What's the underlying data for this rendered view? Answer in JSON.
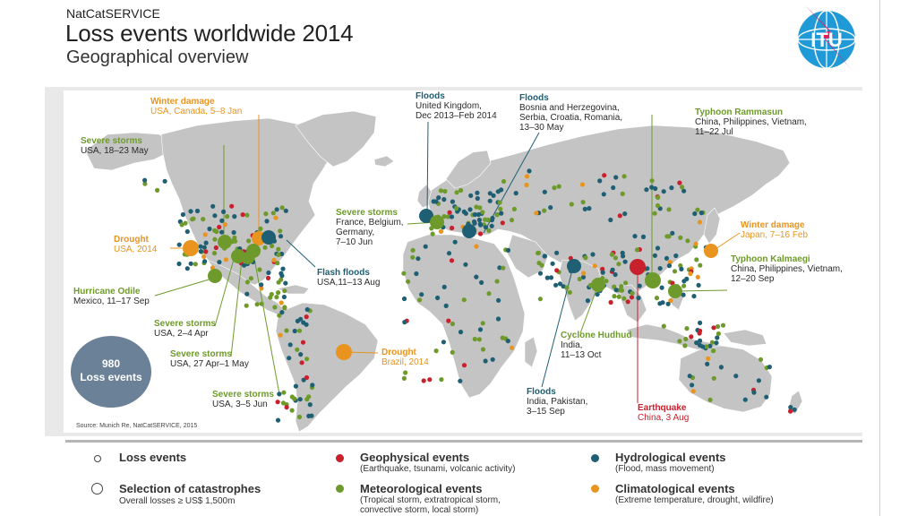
{
  "header": {
    "brand": "NatCatSERVICE",
    "title": "Loss events worldwide 2014",
    "subtitle": "Geographical overview",
    "logo_text": "ITU"
  },
  "summary": {
    "count": "980",
    "label": "Loss events"
  },
  "source": "Source: Munich Re, NatCatSERVICE, 2015",
  "colors": {
    "geophysical": "#c8202c",
    "hydrological": "#1e5f73",
    "meteorological": "#6e9a2b",
    "climatological": "#e8941e",
    "land": "#c4c4c4",
    "count_circle": "#6b8198"
  },
  "map_labels": [
    {
      "id": "winter-damage-usa",
      "title": "Winter damage",
      "sub": "USA, Canada, 5–8 Jan",
      "type": "climatological"
    },
    {
      "id": "severe-storms-usa-may",
      "title": "Severe storms",
      "sub": "USA, 18–23 May",
      "type": "meteorological"
    },
    {
      "id": "drought-usa",
      "title": "Drought",
      "sub": "USA, 2014",
      "type": "climatological"
    },
    {
      "id": "hurricane-odile",
      "title": "Hurricane Odile",
      "sub": "Mexico, 11–17 Sep",
      "type": "meteorological"
    },
    {
      "id": "severe-storms-usa-apr",
      "title": "Severe storms",
      "sub": "USA, 2–4 Apr",
      "type": "meteorological"
    },
    {
      "id": "severe-storms-usa-apr-may",
      "title": "Severe storms",
      "sub": "USA, 27 Apr–1 May",
      "type": "meteorological"
    },
    {
      "id": "severe-storms-usa-jun",
      "title": "Severe storms",
      "sub": "USA, 3–5 Jun",
      "type": "meteorological"
    },
    {
      "id": "floods-uk",
      "title": "Floods",
      "sub": "United Kingdom,",
      "sub2": "Dec 2013–Feb 2014",
      "type": "hydrological"
    },
    {
      "id": "floods-balkans",
      "title": "Floods",
      "sub": "Bosnia and Herzegovina,",
      "sub2": "Serbia, Croatia, Romania,",
      "sub3": "13–30 May",
      "type": "hydrological"
    },
    {
      "id": "severe-storms-europe",
      "title": "Severe storms",
      "sub": "France, Belgium,",
      "sub2": "Germany,",
      "sub3": "7–10 Jun",
      "type": "meteorological"
    },
    {
      "id": "flash-floods-usa",
      "title": "Flash floods",
      "sub": "USA,11–13 Aug",
      "type": "hydrological"
    },
    {
      "id": "drought-brazil",
      "title": "Drought",
      "sub": "Brazil, 2014",
      "type": "climatological"
    },
    {
      "id": "typhoon-rammasun",
      "title": "Typhoon Rammasun",
      "sub": "China, Philippines, Vietnam,",
      "sub2": "11–22 Jul",
      "type": "meteorological"
    },
    {
      "id": "winter-damage-japan",
      "title": "Winter damage",
      "sub": "Japan, 7–16 Feb",
      "type": "climatological"
    },
    {
      "id": "typhoon-kalmaegi",
      "title": "Typhoon Kalmaegi",
      "sub": "China, Philippines, Vietnam,",
      "sub2": "12–20 Sep",
      "type": "meteorological"
    },
    {
      "id": "cyclone-hudhud",
      "title": "Cyclone Hudhud",
      "sub": "India,",
      "sub2": "11–13 Oct",
      "type": "meteorological"
    },
    {
      "id": "floods-india",
      "title": "Floods",
      "sub": "India, Pakistan,",
      "sub2": "3–15 Sep",
      "type": "hydrological"
    },
    {
      "id": "earthquake-china",
      "title": "Earthquake",
      "sub": "China, 3 Aug",
      "type": "geophysical"
    }
  ],
  "legend": {
    "loss_events": "Loss events",
    "catastrophes": "Selection of catastrophes",
    "catastrophes_sub": "Overall losses ≥ US$ 1,500m",
    "geophysical": "Geophysical events",
    "geophysical_sub": "(Earthquake, tsunami, volcanic activity)",
    "meteorological": "Meteorological events",
    "meteorological_sub": "(Tropical storm, extratropical storm,",
    "meteorological_sub2": "convective storm, local storm)",
    "hydrological": "Hydrological events",
    "hydrological_sub": "(Flood, mass movement)",
    "climatological": "Climatological events",
    "climatological_sub": "(Extreme temperature, drought, wildfire)"
  }
}
